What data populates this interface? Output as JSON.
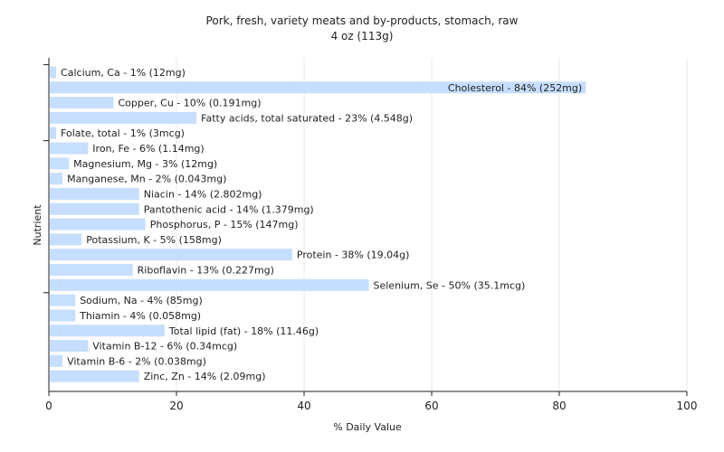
{
  "chart_data": {
    "type": "bar",
    "orientation": "horizontal",
    "title": "Pork, fresh, variety meats and by-products, stomach, raw",
    "subtitle": "4 oz (113g)",
    "xlabel": "% Daily Value",
    "ylabel": "Nutrient",
    "xlim": [
      0,
      100
    ],
    "xticks": [
      "0",
      "20",
      "40",
      "60",
      "80",
      "100"
    ],
    "grid": true,
    "bar_color": "#c6deff",
    "categories": [
      "Calcium, Ca",
      "Cholesterol",
      "Copper, Cu",
      "Fatty acids, total saturated",
      "Folate, total",
      "Iron, Fe",
      "Magnesium, Mg",
      "Manganese, Mn",
      "Niacin",
      "Pantothenic acid",
      "Phosphorus, P",
      "Potassium, K",
      "Protein",
      "Riboflavin",
      "Selenium, Se",
      "Sodium, Na",
      "Thiamin",
      "Total lipid (fat)",
      "Vitamin B-12",
      "Vitamin B-6",
      "Zinc, Zn"
    ],
    "values": [
      1,
      84,
      10,
      23,
      1,
      6,
      3,
      2,
      14,
      14,
      15,
      5,
      38,
      13,
      50,
      4,
      4,
      18,
      6,
      2,
      14
    ],
    "labels": [
      "Calcium, Ca - 1% (12mg)",
      "Cholesterol - 84% (252mg)",
      "Copper, Cu - 10% (0.191mg)",
      "Fatty acids, total saturated - 23% (4.548g)",
      "Folate, total - 1% (3mcg)",
      "Iron, Fe - 6% (1.14mg)",
      "Magnesium, Mg - 3% (12mg)",
      "Manganese, Mn - 2% (0.043mg)",
      "Niacin - 14% (2.802mg)",
      "Pantothenic acid - 14% (1.379mg)",
      "Phosphorus, P - 15% (147mg)",
      "Potassium, K - 5% (158mg)",
      "Protein - 38% (19.04g)",
      "Riboflavin - 13% (0.227mg)",
      "Selenium, Se - 50% (35.1mcg)",
      "Sodium, Na - 4% (85mg)",
      "Thiamin - 4% (0.058mg)",
      "Total lipid (fat) - 18% (11.46g)",
      "Vitamin B-12 - 6% (0.34mcg)",
      "Vitamin B-6 - 2% (0.038mg)",
      "Zinc, Zn - 14% (2.09mg)"
    ],
    "inside_label_categories": [
      "Cholesterol"
    ]
  }
}
